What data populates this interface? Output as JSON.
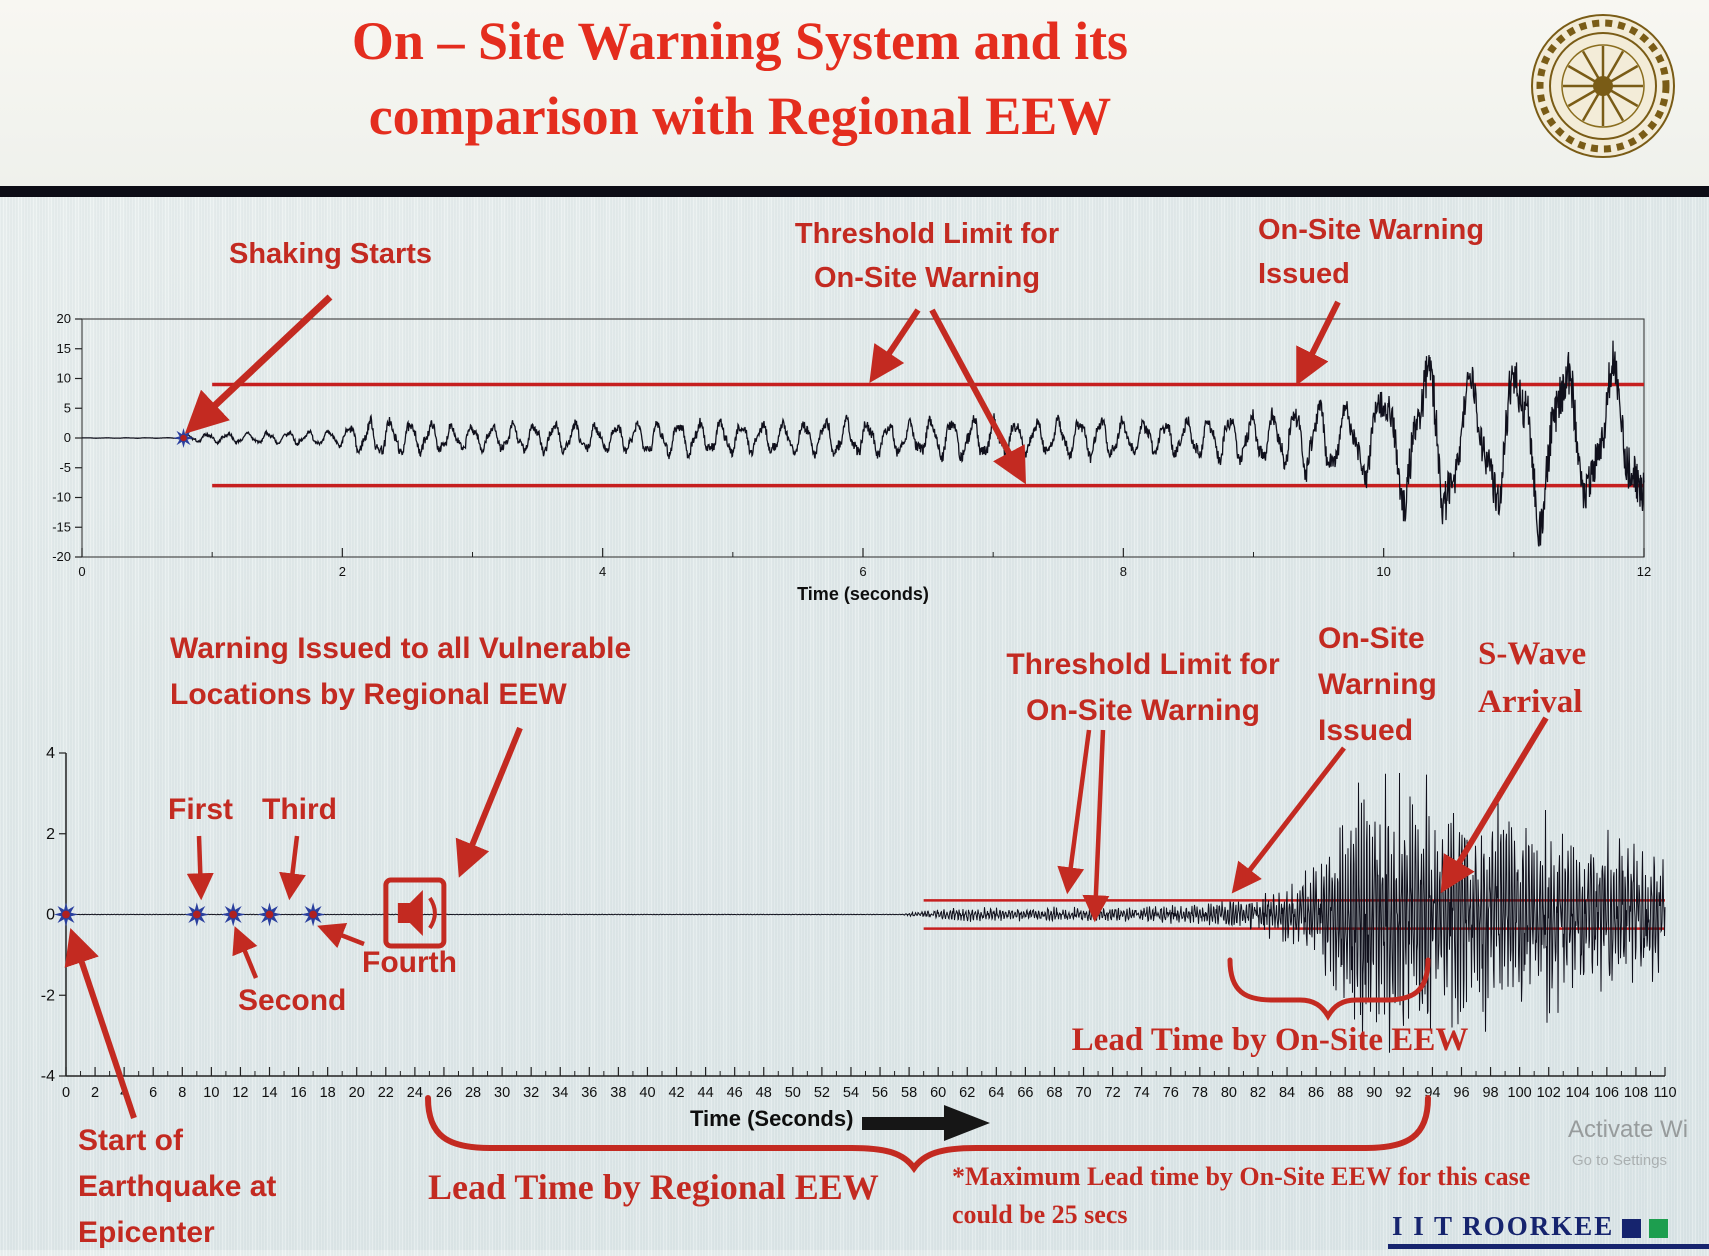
{
  "header": {
    "title_line1": "On – Site Warning System and its",
    "title_line2": "comparison with Regional EEW"
  },
  "colors": {
    "title_red": "#e42d1e",
    "annotation_red": "#c32a21",
    "threshold_red": "#c61f1f",
    "waveform": "#10101c",
    "star_blue": "#2a3f9e",
    "star_center": "#b02020",
    "brand_navy": "#16246e",
    "brand_green": "#1d9e4f"
  },
  "annotations1": {
    "shaking_starts": "Shaking Starts",
    "threshold_l1": "Threshold Limit for",
    "threshold_l2": "On-Site Warning",
    "issued_l1": "On-Site Warning",
    "issued_l2": "Issued"
  },
  "annotations2": {
    "regional_l1": "Warning Issued to all Vulnerable",
    "regional_l2": "Locations by Regional EEW",
    "first": "First",
    "second": "Second",
    "third": "Third",
    "fourth": "Fourth",
    "threshold_l1": "Threshold Limit for",
    "threshold_l2": "On-Site Warning",
    "onsite_l1": "On-Site",
    "onsite_l2": "Warning",
    "onsite_l3": "Issued",
    "swave_l1": "S-Wave",
    "swave_l2": "Arrival",
    "lead_onsite": "Lead Time by On-Site EEW",
    "lead_regional": "Lead Time by Regional EEW",
    "epicenter_l1": "Start of",
    "epicenter_l2": "Earthquake at",
    "epicenter_l3": "Epicenter",
    "footnote_l1": "*Maximum Lead time by On-Site EEW for this case",
    "footnote_l2": "could be 25 secs"
  },
  "footer": {
    "brand": "I I T ROORKEE",
    "watermark_l1": "Activate Wi",
    "watermark_l2": "Go to Settings"
  },
  "chart_data": [
    {
      "type": "line",
      "name": "onsite-accelerogram",
      "title": "",
      "xlabel": "Time (seconds)",
      "ylabel": "",
      "xlim": [
        0,
        12
      ],
      "ylim": [
        -20,
        20
      ],
      "xticks": [
        0,
        2,
        4,
        6,
        8,
        10,
        12
      ],
      "yticks": [
        20,
        15,
        10,
        5,
        0,
        -5,
        -10,
        -15,
        -20
      ],
      "threshold": {
        "upper": 9,
        "lower": -8,
        "x_start": 1
      },
      "events": {
        "shaking_starts_t": 0.78,
        "onsite_warning_issued_t": 9.5
      },
      "markers": [
        {
          "x": 0.78,
          "y": 0
        }
      ],
      "envelope": [
        [
          0,
          0.03
        ],
        [
          0.72,
          0.05
        ],
        [
          0.85,
          0.8
        ],
        [
          1.3,
          1.0
        ],
        [
          1.9,
          1.4
        ],
        [
          2.25,
          3.6
        ],
        [
          2.6,
          3.0
        ],
        [
          3.1,
          2.3
        ],
        [
          3.5,
          3.1
        ],
        [
          4.0,
          2.5
        ],
        [
          4.6,
          3.3
        ],
        [
          5.2,
          2.8
        ],
        [
          5.8,
          3.5
        ],
        [
          6.3,
          3.0
        ],
        [
          6.8,
          4.1
        ],
        [
          7.3,
          3.2
        ],
        [
          7.8,
          3.7
        ],
        [
          8.3,
          3.1
        ],
        [
          8.8,
          4.3
        ],
        [
          9.2,
          4.8
        ],
        [
          9.45,
          7.8
        ],
        [
          9.7,
          6.5
        ],
        [
          9.9,
          8.5
        ],
        [
          10.15,
          12.5
        ],
        [
          10.45,
          16
        ],
        [
          10.7,
          11
        ],
        [
          11.0,
          14.5
        ],
        [
          11.3,
          17
        ],
        [
          11.6,
          12
        ],
        [
          11.85,
          15
        ],
        [
          12,
          13
        ]
      ],
      "freq": [
        [
          0,
          6.5
        ],
        [
          9.3,
          6.0
        ],
        [
          10.0,
          3.0
        ],
        [
          12,
          2.6
        ]
      ],
      "noise": 0.28,
      "seed": 7
    },
    {
      "type": "line",
      "name": "regional-vs-onsite-timeline",
      "title": "",
      "xlabel": "Time (Seconds)",
      "ylabel": "",
      "xlim": [
        0,
        110
      ],
      "ylim": [
        -4,
        4
      ],
      "xticks": [
        0,
        2,
        4,
        6,
        8,
        10,
        12,
        14,
        16,
        18,
        20,
        22,
        24,
        26,
        28,
        30,
        32,
        34,
        36,
        38,
        40,
        42,
        44,
        46,
        48,
        50,
        52,
        54,
        56,
        58,
        60,
        62,
        64,
        66,
        68,
        70,
        72,
        74,
        76,
        78,
        80,
        82,
        84,
        86,
        88,
        90,
        92,
        94,
        96,
        98,
        100,
        102,
        104,
        106,
        108,
        110
      ],
      "yticks": [
        4,
        2,
        0,
        -2,
        -4
      ],
      "threshold": {
        "upper": 0.35,
        "lower": -0.35,
        "x_start": 59
      },
      "events": {
        "p_wave_detections_t": [
          0,
          9,
          11.5,
          14,
          17
        ],
        "regional_warning_broadcast_t": 24,
        "onsite_warning_issued_t": 80,
        "s_wave_arrival_t": 94,
        "regional_lead_time_span_t": [
          24,
          93.5
        ],
        "onsite_lead_time_span_t": [
          80,
          93.5
        ],
        "max_onsite_lead_time_secs": 25
      },
      "markers": [
        {
          "x": 0,
          "y": 0
        },
        {
          "x": 9,
          "y": 0
        },
        {
          "x": 11.5,
          "y": 0
        },
        {
          "x": 14,
          "y": 0
        },
        {
          "x": 17,
          "y": 0
        }
      ],
      "envelope": [
        [
          0,
          0.006
        ],
        [
          57.5,
          0.006
        ],
        [
          58.5,
          0.05
        ],
        [
          60,
          0.1
        ],
        [
          63,
          0.14
        ],
        [
          66,
          0.11
        ],
        [
          69,
          0.15
        ],
        [
          72,
          0.12
        ],
        [
          75,
          0.16
        ],
        [
          78,
          0.18
        ],
        [
          80,
          0.26
        ],
        [
          82,
          0.34
        ],
        [
          84,
          0.55
        ],
        [
          86,
          0.9
        ],
        [
          87.5,
          1.5
        ],
        [
          88.5,
          2.2
        ],
        [
          89.5,
          2.9
        ],
        [
          90.5,
          2.3
        ],
        [
          91.5,
          2.8
        ],
        [
          92.5,
          2.1
        ],
        [
          93.5,
          2.6
        ],
        [
          94.5,
          2.0
        ],
        [
          95.5,
          2.4
        ],
        [
          97,
          1.8
        ],
        [
          98.5,
          2.1
        ],
        [
          100,
          1.7
        ],
        [
          102,
          1.9
        ],
        [
          104,
          1.5
        ],
        [
          106,
          1.7
        ],
        [
          108,
          1.35
        ],
        [
          110,
          1.25
        ]
      ],
      "freq": [
        [
          0,
          4.5
        ],
        [
          57,
          4.5
        ],
        [
          85,
          5.5
        ],
        [
          110,
          5.0
        ]
      ],
      "noise": 0.65,
      "seed": 99
    }
  ]
}
